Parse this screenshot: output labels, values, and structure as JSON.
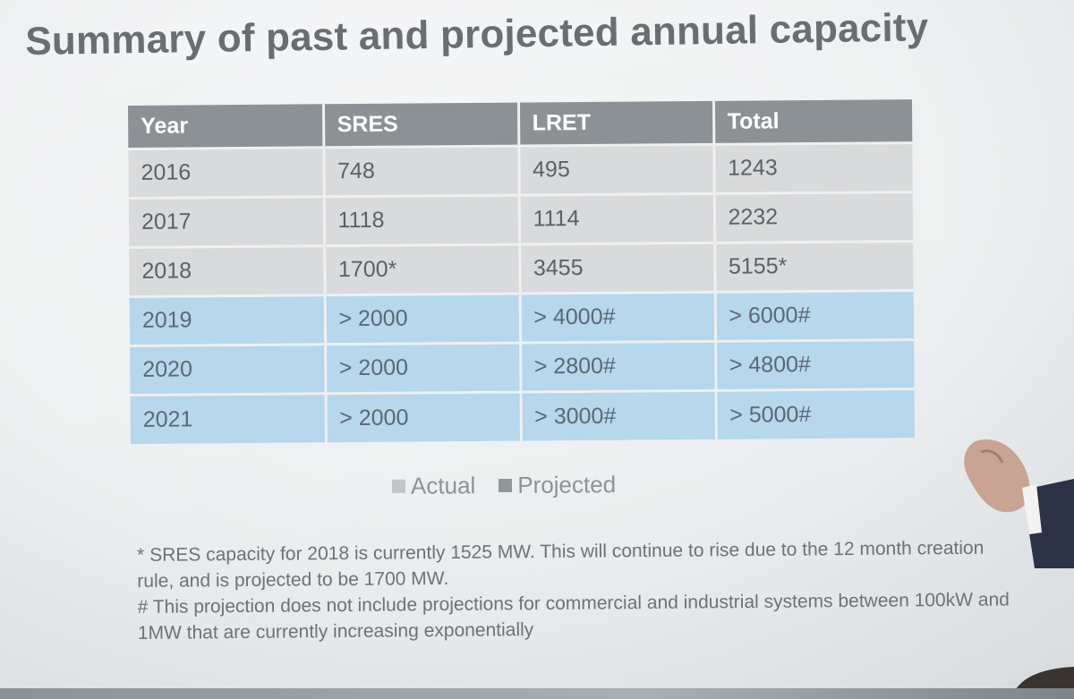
{
  "slide": {
    "title": "Summary of past and projected annual capacity"
  },
  "table": {
    "headers": [
      "Year",
      "SRES",
      "LRET",
      "Total"
    ],
    "rows": [
      {
        "cells": [
          "2016",
          "748",
          "495",
          "1243"
        ],
        "kind": "actual"
      },
      {
        "cells": [
          "2017",
          "1118",
          "1114",
          "2232"
        ],
        "kind": "actual"
      },
      {
        "cells": [
          "2018",
          "1700*",
          "3455",
          "5155*"
        ],
        "kind": "actual"
      },
      {
        "cells": [
          "2019",
          "> 2000",
          "> 4000#",
          "> 6000#"
        ],
        "kind": "projected"
      },
      {
        "cells": [
          "2020",
          "> 2000",
          "> 2800#",
          "> 4800#"
        ],
        "kind": "projected"
      },
      {
        "cells": [
          "2021",
          "> 2000",
          "> 3000#",
          "> 5000#"
        ],
        "kind": "projected"
      }
    ]
  },
  "legend": {
    "actual": "Actual",
    "projected": "Projected"
  },
  "footnotes": {
    "line1": "* SRES capacity for 2018 is currently 1525 MW. This will continue to rise due to the 12 month creation rule, and is projected to be 1700 MW.",
    "line2": "# This projection does not include projections for commercial and industrial systems between 100kW and 1MW that are currently increasing exponentially"
  },
  "colors": {
    "header_bg": "#8c9196",
    "actual_row": "#d9dadb",
    "projected_row": "#b6d7ec",
    "title_text": "#6a6d72"
  }
}
